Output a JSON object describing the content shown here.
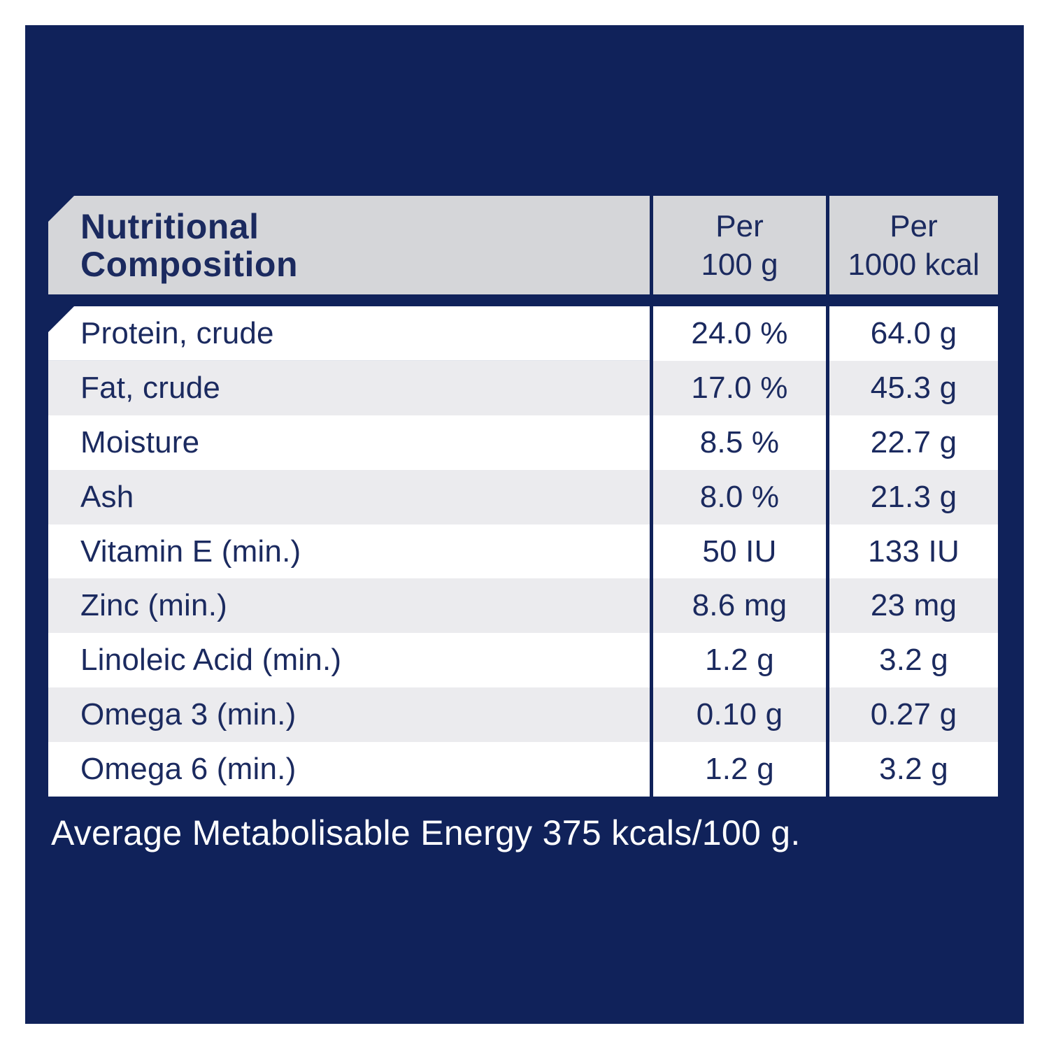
{
  "header": {
    "title_lines": [
      "Nutritional",
      "Composition"
    ],
    "col_per_100g_lines": [
      "Per",
      "100 g"
    ],
    "col_per_1000kcal_lines": [
      "Per",
      "1000 kcal"
    ]
  },
  "rows": [
    {
      "label": "Protein, crude",
      "per_100g": "24.0 %",
      "per_1000kcal": "64.0 g"
    },
    {
      "label": "Fat, crude",
      "per_100g": "17.0 %",
      "per_1000kcal": "45.3 g"
    },
    {
      "label": "Moisture",
      "per_100g": "8.5 %",
      "per_1000kcal": "22.7 g"
    },
    {
      "label": "Ash",
      "per_100g": "8.0 %",
      "per_1000kcal": "21.3 g"
    },
    {
      "label": "Vitamin E (min.)",
      "per_100g": "50 IU",
      "per_1000kcal": "133 IU"
    },
    {
      "label": "Zinc (min.)",
      "per_100g": "8.6 mg",
      "per_1000kcal": "23 mg"
    },
    {
      "label": "Linoleic Acid (min.)",
      "per_100g": "1.2 g",
      "per_1000kcal": "3.2 g"
    },
    {
      "label": "Omega 3 (min.)",
      "per_100g": "0.10 g",
      "per_1000kcal": "0.27 g"
    },
    {
      "label": "Omega 6 (min.)",
      "per_100g": "1.2 g",
      "per_1000kcal": "3.2 g"
    }
  ],
  "footer": {
    "note": "Average Metabolisable Energy 375 kcals/100 g."
  },
  "colors": {
    "background": "#ffffff",
    "panel_navy": "#10225a",
    "header_gray": "#d5d6d9",
    "row_white": "#ffffff",
    "row_alt_gray": "#ebebee",
    "text_navy": "#1b2a5f",
    "footer_text": "#ffffff"
  }
}
